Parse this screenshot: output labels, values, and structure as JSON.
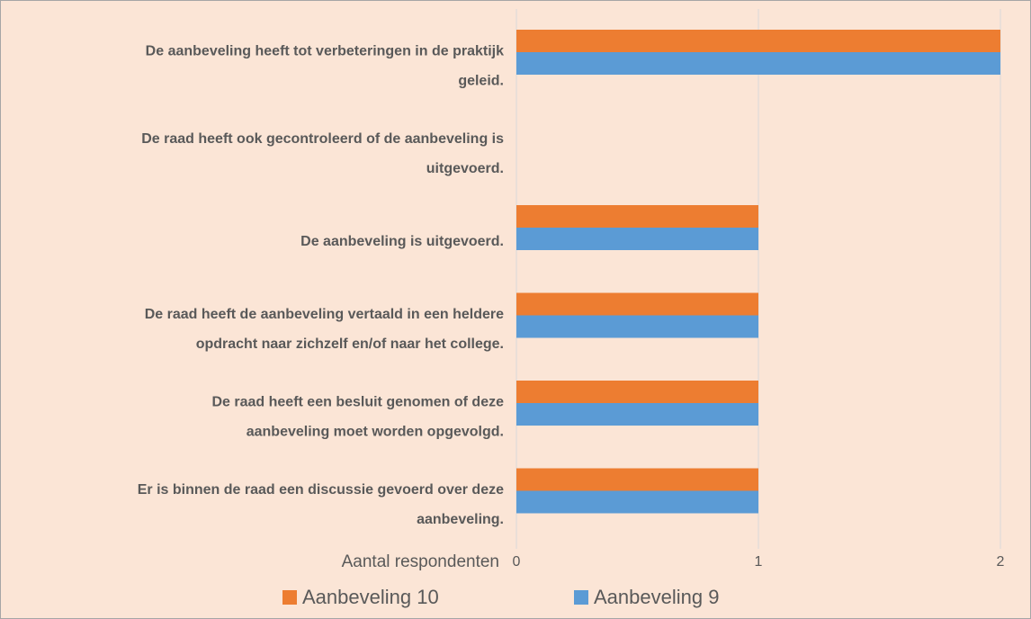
{
  "chart_data": {
    "type": "barh",
    "categories": [
      [
        "De aanbeveling heeft tot verbeteringen in de praktijk",
        "geleid."
      ],
      [
        "De raad heeft ook gecontroleerd of de aanbeveling is",
        "uitgevoerd."
      ],
      [
        "De aanbeveling is uitgevoerd."
      ],
      [
        "De raad heeft de aanbeveling vertaald in een heldere",
        "opdracht naar zichzelf en/of naar het college."
      ],
      [
        "De raad heeft een besluit genomen of deze",
        "aanbeveling moet worden opgevolgd."
      ],
      [
        "Er is binnen de raad een discussie gevoerd over deze",
        "aanbeveling."
      ]
    ],
    "series": [
      {
        "name": "Aanbeveling 10",
        "color": "#ed7d31",
        "values": [
          2,
          0,
          1,
          1,
          1,
          1
        ]
      },
      {
        "name": "Aanbeveling 9",
        "color": "#5b9bd5",
        "values": [
          2,
          0,
          1,
          1,
          1,
          1
        ]
      }
    ],
    "x_label": "Aantal respondenten",
    "xlim": [
      0,
      2
    ],
    "xticks": [
      0,
      1,
      2
    ],
    "grid": true
  }
}
